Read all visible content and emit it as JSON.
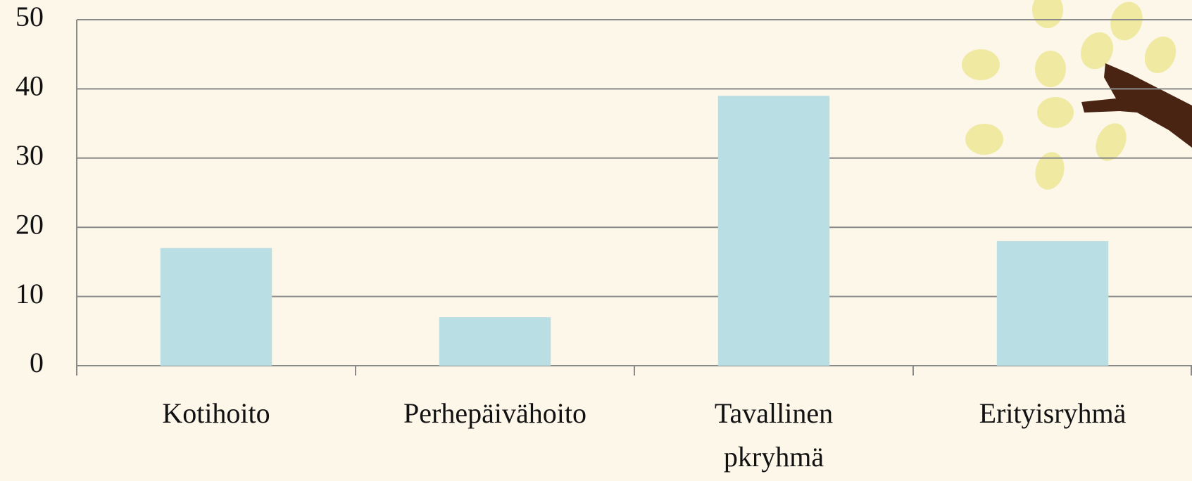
{
  "chart_data": {
    "type": "bar",
    "categories": [
      "Kotihoito",
      "Perhepäivähoito",
      "Tavallinen pkryhmä",
      "Erityisryhmä"
    ],
    "values": [
      17,
      7,
      39,
      18
    ],
    "color": "#b9dfe4",
    "ylim": [
      0,
      50
    ],
    "yticks": [
      0,
      10,
      20,
      30,
      40,
      50
    ],
    "grid": true
  }
}
